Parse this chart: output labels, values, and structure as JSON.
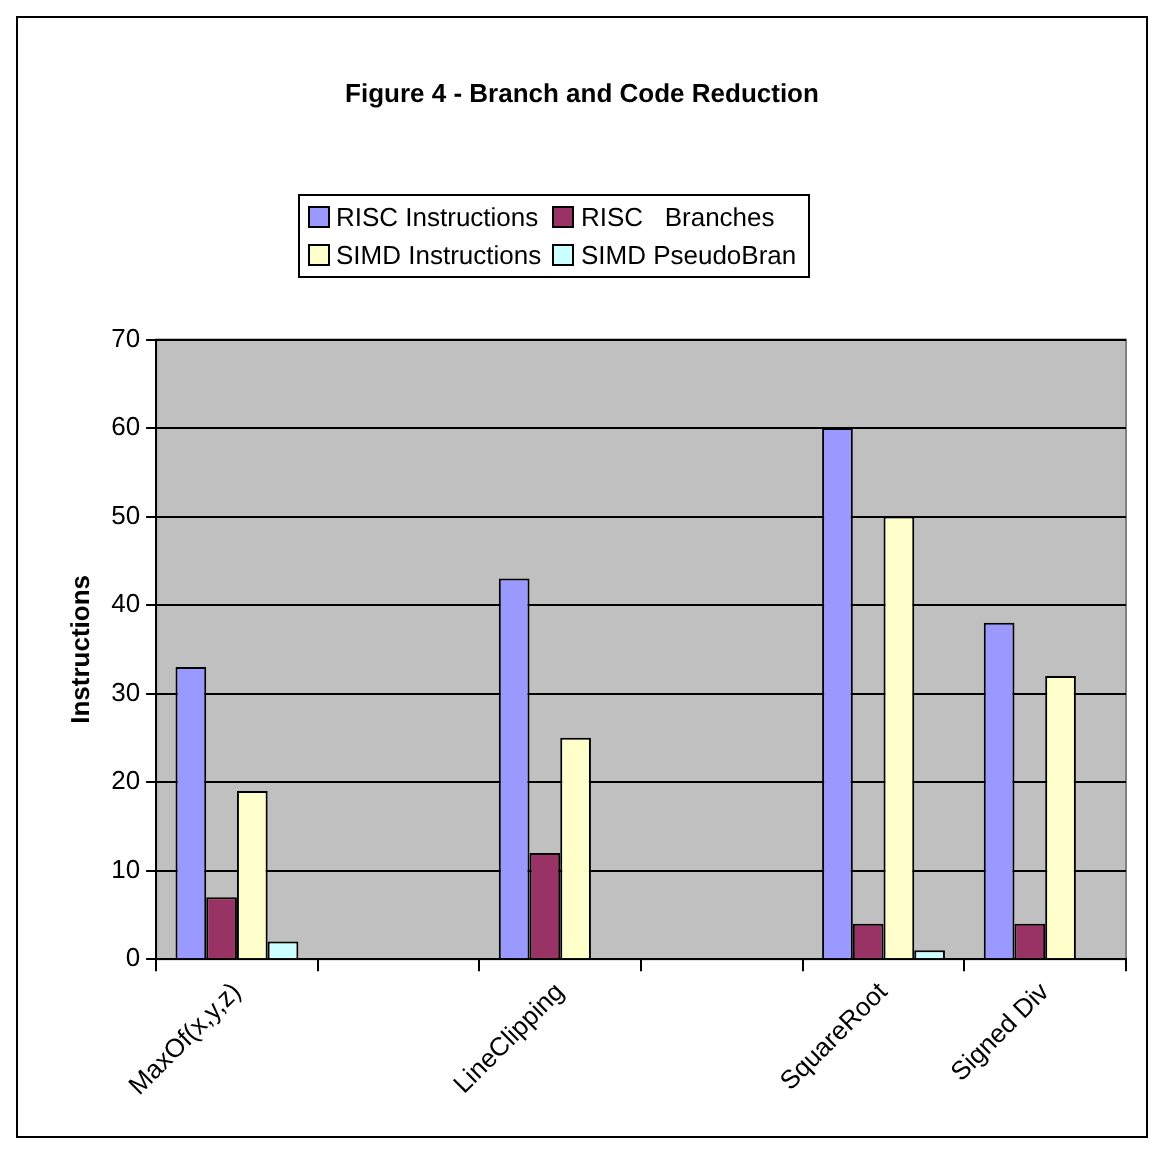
{
  "chart_data": {
    "type": "bar",
    "title": "Figure 4 - Branch and Code Reduction",
    "ylabel": "Instructions",
    "categories": [
      "MaxOf(x,y,z)",
      null,
      "LineClipping",
      null,
      "SquareRoot",
      "Signed Div"
    ],
    "series": [
      {
        "name": "RISC Instructions",
        "color": "#9999ff",
        "values": [
          33,
          null,
          43,
          null,
          60,
          38
        ]
      },
      {
        "name": "RISC   Branches",
        "color": "#993366",
        "values": [
          7,
          null,
          12,
          null,
          4,
          4
        ]
      },
      {
        "name": "SIMD Instructions",
        "color": "#ffffcc",
        "values": [
          19,
          null,
          25,
          null,
          50,
          32
        ]
      },
      {
        "name": "SIMD PseudoBran",
        "color": "#ccffff",
        "values": [
          2,
          null,
          null,
          null,
          1,
          null
        ]
      }
    ],
    "ylim": [
      0,
      70
    ],
    "yticks": [
      0,
      10,
      20,
      30,
      40,
      50,
      60,
      70
    ],
    "grid": "y",
    "legend": "top"
  }
}
